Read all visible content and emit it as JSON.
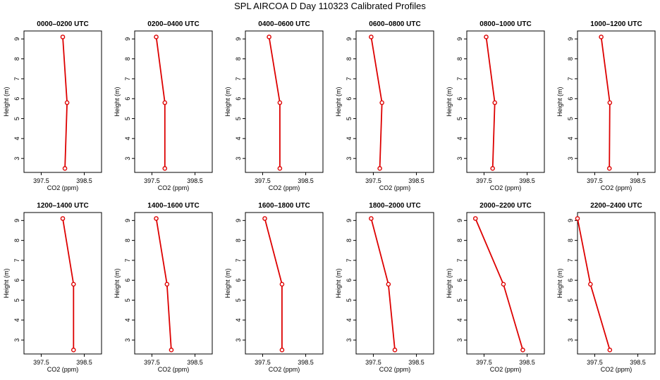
{
  "figure_title": "SPL AIRCOA D  Day 110323  Calibrated Profiles",
  "chart_data": [
    {
      "type": "line",
      "title": "0000–0200 UTC",
      "xlabel": "CO2 (ppm)",
      "ylabel": "Height (m)",
      "xlim": [
        397.1,
        398.9
      ],
      "ylim": [
        2.3,
        9.4
      ],
      "xticks": [
        397.5,
        398.5
      ],
      "yticks": [
        3,
        4,
        5,
        6,
        7,
        8,
        9
      ],
      "series": [
        {
          "name": "profile",
          "x": [
            398.0,
            398.1,
            398.05
          ],
          "y": [
            9.1,
            5.8,
            2.5
          ]
        }
      ]
    },
    {
      "type": "line",
      "title": "0200–0400 UTC",
      "xlabel": "CO2 (ppm)",
      "ylabel": "Height (m)",
      "xlim": [
        397.1,
        398.9
      ],
      "ylim": [
        2.3,
        9.4
      ],
      "xticks": [
        397.5,
        398.5
      ],
      "yticks": [
        3,
        4,
        5,
        6,
        7,
        8,
        9
      ],
      "series": [
        {
          "name": "profile",
          "x": [
            397.6,
            397.8,
            397.8
          ],
          "y": [
            9.1,
            5.8,
            2.5
          ]
        }
      ]
    },
    {
      "type": "line",
      "title": "0400–0600 UTC",
      "xlabel": "CO2 (ppm)",
      "ylabel": "Height (m)",
      "xlim": [
        397.1,
        398.9
      ],
      "ylim": [
        2.3,
        9.4
      ],
      "xticks": [
        397.5,
        398.5
      ],
      "yticks": [
        3,
        4,
        5,
        6,
        7,
        8,
        9
      ],
      "series": [
        {
          "name": "profile",
          "x": [
            397.65,
            397.9,
            397.9
          ],
          "y": [
            9.1,
            5.8,
            2.5
          ]
        }
      ]
    },
    {
      "type": "line",
      "title": "0600–0800 UTC",
      "xlabel": "CO2 (ppm)",
      "ylabel": "Height (m)",
      "xlim": [
        397.1,
        398.9
      ],
      "ylim": [
        2.3,
        9.4
      ],
      "xticks": [
        397.5,
        398.5
      ],
      "yticks": [
        3,
        4,
        5,
        6,
        7,
        8,
        9
      ],
      "series": [
        {
          "name": "profile",
          "x": [
            397.45,
            397.7,
            397.65
          ],
          "y": [
            9.1,
            5.8,
            2.5
          ]
        }
      ]
    },
    {
      "type": "line",
      "title": "0800–1000 UTC",
      "xlabel": "CO2 (ppm)",
      "ylabel": "Height (m)",
      "xlim": [
        397.1,
        398.9
      ],
      "ylim": [
        2.3,
        9.4
      ],
      "xticks": [
        397.5,
        398.5
      ],
      "yticks": [
        3,
        4,
        5,
        6,
        7,
        8,
        9
      ],
      "series": [
        {
          "name": "profile",
          "x": [
            397.55,
            397.75,
            397.7
          ],
          "y": [
            9.1,
            5.8,
            2.5
          ]
        }
      ]
    },
    {
      "type": "line",
      "title": "1000–1200 UTC",
      "xlabel": "CO2 (ppm)",
      "ylabel": "Height (m)",
      "xlim": [
        397.1,
        398.9
      ],
      "ylim": [
        2.3,
        9.4
      ],
      "xticks": [
        397.5,
        398.5
      ],
      "yticks": [
        3,
        4,
        5,
        6,
        7,
        8,
        9
      ],
      "series": [
        {
          "name": "profile",
          "x": [
            397.65,
            397.85,
            397.84
          ],
          "y": [
            9.1,
            5.8,
            2.5
          ]
        }
      ]
    },
    {
      "type": "line",
      "title": "1200–1400 UTC",
      "xlabel": "CO2 (ppm)",
      "ylabel": "Height (m)",
      "xlim": [
        397.1,
        398.9
      ],
      "ylim": [
        2.3,
        9.4
      ],
      "xticks": [
        397.5,
        398.5
      ],
      "yticks": [
        3,
        4,
        5,
        6,
        7,
        8,
        9
      ],
      "series": [
        {
          "name": "profile",
          "x": [
            398.0,
            398.25,
            398.25
          ],
          "y": [
            9.1,
            5.8,
            2.5
          ]
        }
      ]
    },
    {
      "type": "line",
      "title": "1400–1600 UTC",
      "xlabel": "CO2 (ppm)",
      "ylabel": "Height (m)",
      "xlim": [
        397.1,
        398.9
      ],
      "ylim": [
        2.3,
        9.4
      ],
      "xticks": [
        397.5,
        398.5
      ],
      "yticks": [
        3,
        4,
        5,
        6,
        7,
        8,
        9
      ],
      "series": [
        {
          "name": "profile",
          "x": [
            397.6,
            397.85,
            397.95
          ],
          "y": [
            9.1,
            5.8,
            2.5
          ]
        }
      ]
    },
    {
      "type": "line",
      "title": "1600–1800 UTC",
      "xlabel": "CO2 (ppm)",
      "ylabel": "Height (m)",
      "xlim": [
        397.1,
        398.9
      ],
      "ylim": [
        2.3,
        9.4
      ],
      "xticks": [
        397.5,
        398.5
      ],
      "yticks": [
        3,
        4,
        5,
        6,
        7,
        8,
        9
      ],
      "series": [
        {
          "name": "profile",
          "x": [
            397.55,
            397.95,
            397.95
          ],
          "y": [
            9.1,
            5.8,
            2.5
          ]
        }
      ]
    },
    {
      "type": "line",
      "title": "1800–2000 UTC",
      "xlabel": "CO2 (ppm)",
      "ylabel": "Height (m)",
      "xlim": [
        397.1,
        398.9
      ],
      "ylim": [
        2.3,
        9.4
      ],
      "xticks": [
        397.5,
        398.5
      ],
      "yticks": [
        3,
        4,
        5,
        6,
        7,
        8,
        9
      ],
      "series": [
        {
          "name": "profile",
          "x": [
            397.45,
            397.85,
            398.0
          ],
          "y": [
            9.1,
            5.8,
            2.5
          ]
        }
      ]
    },
    {
      "type": "line",
      "title": "2000–2200 UTC",
      "xlabel": "CO2 (ppm)",
      "ylabel": "Height (m)",
      "xlim": [
        397.1,
        398.9
      ],
      "ylim": [
        2.3,
        9.4
      ],
      "xticks": [
        397.5,
        398.5
      ],
      "yticks": [
        3,
        4,
        5,
        6,
        7,
        8,
        9
      ],
      "series": [
        {
          "name": "profile",
          "x": [
            397.3,
            397.95,
            398.4
          ],
          "y": [
            9.1,
            5.8,
            2.5
          ]
        }
      ]
    },
    {
      "type": "line",
      "title": "2200–2400 UTC",
      "xlabel": "CO2 (ppm)",
      "ylabel": "Height (m)",
      "xlim": [
        397.1,
        398.9
      ],
      "ylim": [
        2.3,
        9.4
      ],
      "xticks": [
        397.5,
        398.5
      ],
      "yticks": [
        3,
        4,
        5,
        6,
        7,
        8,
        9
      ],
      "series": [
        {
          "name": "profile",
          "x": [
            397.1,
            397.4,
            397.85
          ],
          "y": [
            9.1,
            5.8,
            2.5
          ]
        }
      ]
    }
  ],
  "colors": {
    "series_line": "#dd0000",
    "marker": "#dd0000",
    "axes": "#000000"
  }
}
